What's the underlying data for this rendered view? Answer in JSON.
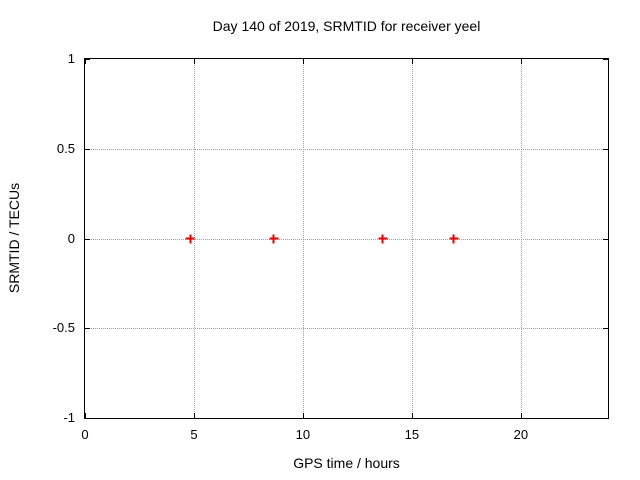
{
  "chart_data": {
    "type": "scatter",
    "title": "Day 140 of 2019, SRMTID for receiver yeel",
    "xlabel": "GPS time / hours",
    "ylabel": "SRMTID / TECUs",
    "xlim": [
      0,
      24
    ],
    "ylim": [
      -1,
      1
    ],
    "x_ticks": [
      0,
      5,
      10,
      15,
      20
    ],
    "x_tick_labels": [
      "0",
      "5",
      "10",
      "15",
      "20"
    ],
    "y_ticks": [
      1,
      0.5,
      0,
      -0.5,
      -1
    ],
    "y_tick_labels": [
      "1",
      "0.5",
      "0",
      "-0.5",
      "-1"
    ],
    "grid": true,
    "legend_position": "none",
    "series": [
      {
        "name": "SRMTID",
        "marker": "plus",
        "color": "#ee0000",
        "points": [
          {
            "x": 4.83,
            "y": 0
          },
          {
            "x": 8.67,
            "y": 0
          },
          {
            "x": 13.66,
            "y": 0
          },
          {
            "x": 16.93,
            "y": 0
          }
        ]
      }
    ],
    "colors": {
      "axis": "#000000",
      "grid": "#a0a0a0",
      "background": "#ffffff",
      "text": "#000000"
    }
  }
}
